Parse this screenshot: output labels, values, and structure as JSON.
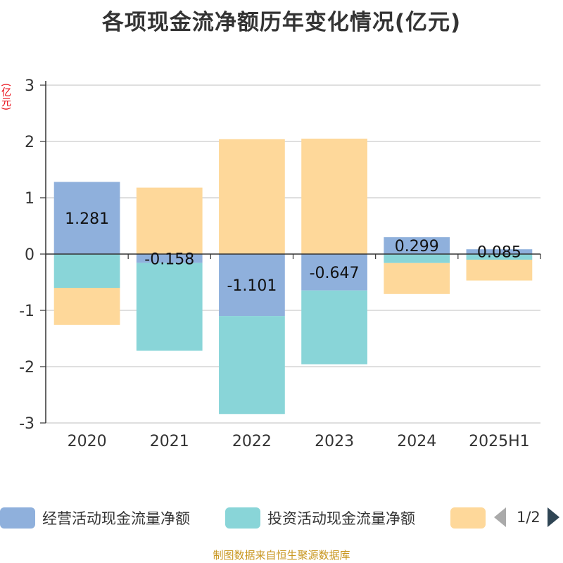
{
  "title": "各项现金流净额历年变化情况(亿元)",
  "y_unit": "(亿元)",
  "source": "制图数据来自恒生聚源数据库",
  "legend": {
    "items": [
      {
        "label": "经营活动现金流量净额",
        "color": "#8fb0dc"
      },
      {
        "label": "投资活动现金流量净额",
        "color": "#89d5d8"
      },
      {
        "label": "",
        "color": "#fed89a"
      }
    ],
    "page": "1/2"
  },
  "chart_data": {
    "type": "bar",
    "stacked": true,
    "categories": [
      "2020",
      "2021",
      "2022",
      "2023",
      "2024",
      "2025H1"
    ],
    "ylim": [
      -3,
      3
    ],
    "yticks": [
      3,
      2,
      1,
      0,
      -1,
      -2,
      -3
    ],
    "grid": true,
    "legend_position": "bottom",
    "series": [
      {
        "name": "经营活动现金流量净额",
        "color": "#8fb0dc",
        "values": [
          1.281,
          -0.158,
          -1.101,
          -0.647,
          0.299,
          0.085
        ],
        "labels": [
          "1.281",
          "-0.158",
          "-1.101",
          "-0.647",
          "0.299",
          "0.085"
        ]
      },
      {
        "name": "投资活动现金流量净额",
        "color": "#89d5d8",
        "values": [
          -0.6,
          -1.56,
          -1.74,
          -1.31,
          -0.16,
          -0.1
        ]
      },
      {
        "color": "#fed89a",
        "values": [
          -0.66,
          1.18,
          2.04,
          2.05,
          -0.55,
          -0.37
        ]
      }
    ]
  }
}
